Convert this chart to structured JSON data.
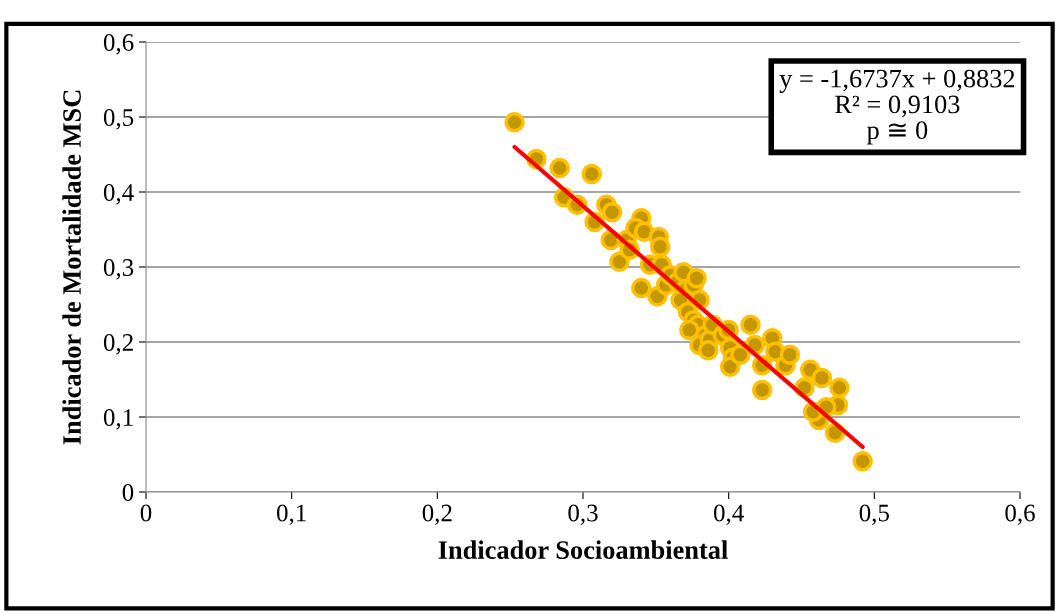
{
  "chart_data": {
    "type": "scatter",
    "xlabel": "Indicador Socioambiental",
    "ylabel": "Indicador de Mortalidade MSC",
    "xlim": [
      0,
      0.6
    ],
    "xticks": [
      {
        "value": 0,
        "label": "0"
      },
      {
        "value": 0.1,
        "label": "0,1"
      },
      {
        "value": 0.2,
        "label": "0,2"
      },
      {
        "value": 0.3,
        "label": "0,3"
      },
      {
        "value": 0.4,
        "label": "0,4"
      },
      {
        "value": 0.5,
        "label": "0,5"
      },
      {
        "value": 0.6,
        "label": "0,6"
      }
    ],
    "ylim": [
      0,
      0.6
    ],
    "yticks": [
      {
        "value": 0,
        "label": "0"
      },
      {
        "value": 0.1,
        "label": "0,1"
      },
      {
        "value": 0.2,
        "label": "0,2"
      },
      {
        "value": 0.3,
        "label": "0,3"
      },
      {
        "value": 0.4,
        "label": "0,4"
      },
      {
        "value": 0.5,
        "label": "0,5"
      },
      {
        "value": 0.6,
        "label": "0,6"
      }
    ],
    "grid": "y",
    "marker": "circle",
    "series": [
      {
        "type": "scatter",
        "color": "#c49600",
        "x": [
          0.253,
          0.268,
          0.284,
          0.287,
          0.306,
          0.296,
          0.308,
          0.316,
          0.32,
          0.319,
          0.325,
          0.33,
          0.332,
          0.34,
          0.336,
          0.342,
          0.34,
          0.346,
          0.352,
          0.353,
          0.351,
          0.354,
          0.357,
          0.36,
          0.365,
          0.369,
          0.37,
          0.367,
          0.376,
          0.378,
          0.372,
          0.376,
          0.38,
          0.379,
          0.373,
          0.384,
          0.38,
          0.387,
          0.389,
          0.386,
          0.396,
          0.4,
          0.401,
          0.403,
          0.401,
          0.408,
          0.415,
          0.418,
          0.423,
          0.423,
          0.43,
          0.432,
          0.439,
          0.442,
          0.452,
          0.456,
          0.464,
          0.476,
          0.475,
          0.462,
          0.473,
          0.492,
          0.458,
          0.467
        ],
        "values": [
          0.493,
          0.444,
          0.432,
          0.393,
          0.424,
          0.383,
          0.36,
          0.383,
          0.373,
          0.336,
          0.307,
          0.336,
          0.323,
          0.365,
          0.352,
          0.347,
          0.272,
          0.303,
          0.34,
          0.327,
          0.261,
          0.303,
          0.276,
          0.289,
          0.28,
          0.293,
          0.269,
          0.256,
          0.276,
          0.285,
          0.24,
          0.229,
          0.256,
          0.223,
          0.216,
          0.209,
          0.196,
          0.203,
          0.223,
          0.189,
          0.209,
          0.216,
          0.192,
          0.179,
          0.167,
          0.183,
          0.223,
          0.196,
          0.136,
          0.169,
          0.205,
          0.187,
          0.169,
          0.183,
          0.139,
          0.163,
          0.152,
          0.139,
          0.116,
          0.096,
          0.079,
          0.041,
          0.107,
          0.113
        ]
      },
      {
        "type": "line",
        "marker": "none",
        "color": "#ff0000",
        "x": [
          0.253,
          0.492
        ],
        "values": [
          0.46,
          0.06
        ]
      }
    ],
    "annotations": [
      "y = -1,6737x + 0,8832",
      "R² = 0,9103",
      "p ≅ 0"
    ]
  }
}
